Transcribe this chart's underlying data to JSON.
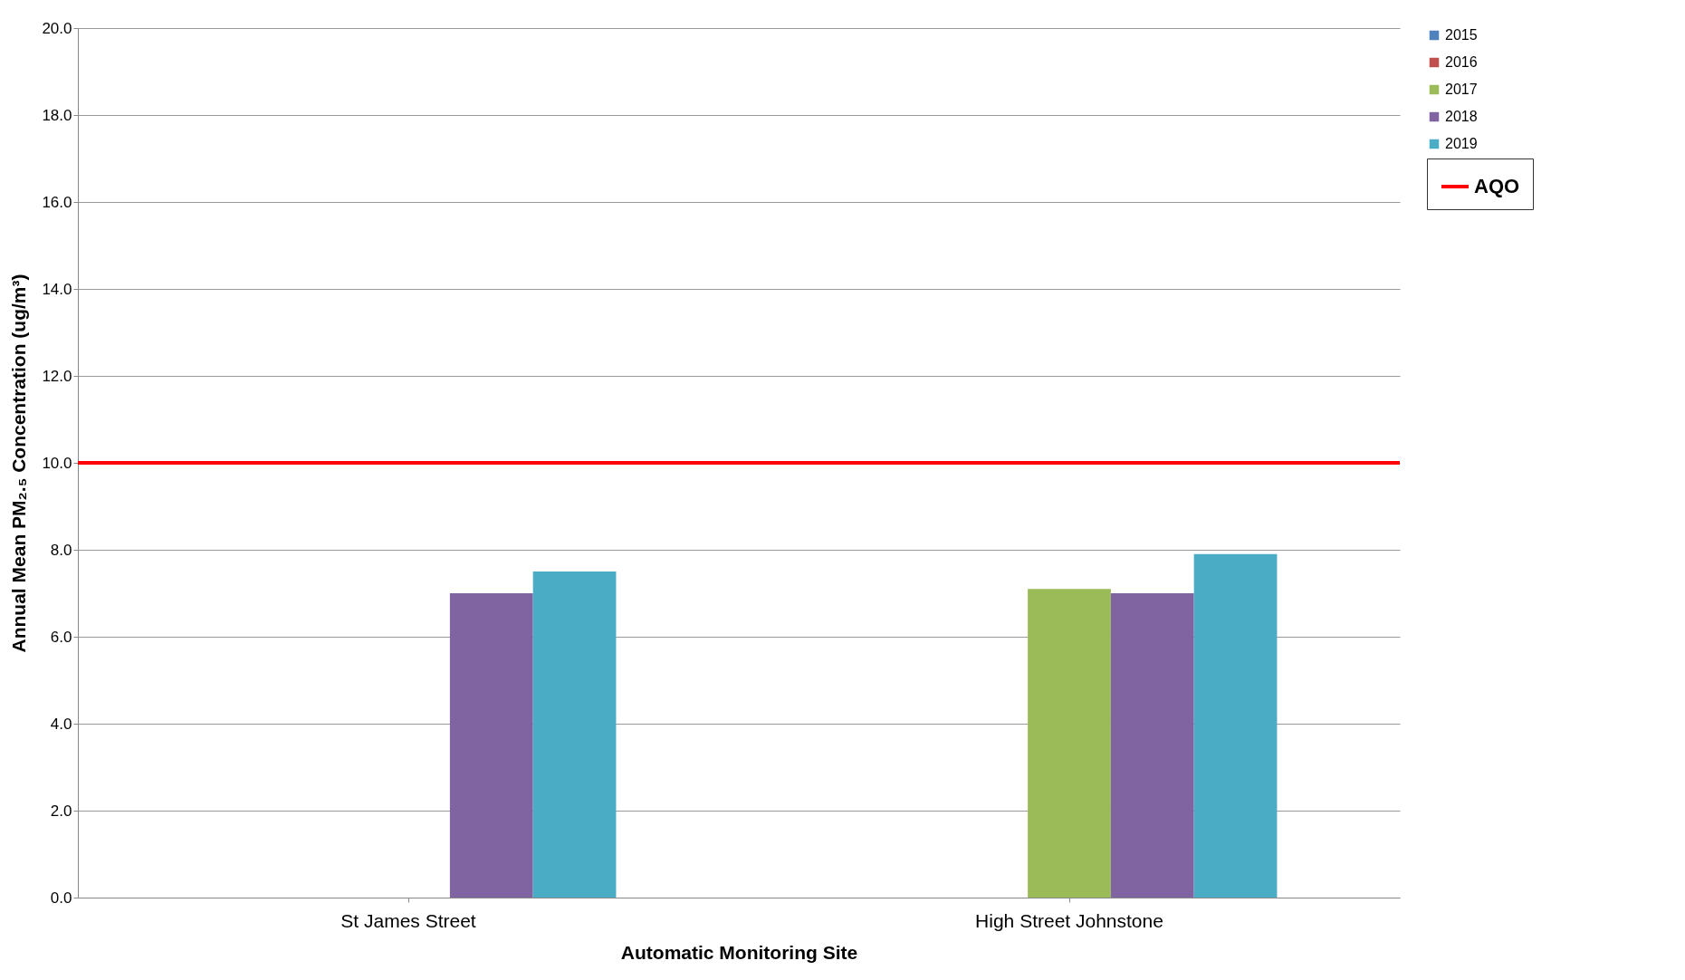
{
  "chart_data": {
    "type": "bar",
    "xlabel": "Automatic Monitoring Site",
    "ylabel": "Annual Mean PM₂.₅ Concentration (ug/m³)",
    "categories": [
      "St James Street",
      "High Street Johnstone"
    ],
    "series": [
      {
        "name": "2015",
        "color": "#4f81bd",
        "values": [
          null,
          null
        ]
      },
      {
        "name": "2016",
        "color": "#c0504d",
        "values": [
          null,
          null
        ]
      },
      {
        "name": "2017",
        "color": "#9bbb59",
        "values": [
          null,
          7.1
        ]
      },
      {
        "name": "2018",
        "color": "#8064a2",
        "values": [
          7.0,
          7.0
        ]
      },
      {
        "name": "2019",
        "color": "#4bacc6",
        "values": [
          7.5,
          7.9
        ]
      }
    ],
    "ylim": [
      0,
      20
    ],
    "yticks": [
      {
        "value": 0,
        "label": "0.0"
      },
      {
        "value": 2,
        "label": "2.0"
      },
      {
        "value": 4,
        "label": "4.0"
      },
      {
        "value": 6,
        "label": "6.0"
      },
      {
        "value": 8,
        "label": "8.0"
      },
      {
        "value": 10,
        "label": "10.0"
      },
      {
        "value": 12,
        "label": "12.0"
      },
      {
        "value": 14,
        "label": "14.0"
      },
      {
        "value": 16,
        "label": "16.0"
      },
      {
        "value": 18,
        "label": "18.0"
      },
      {
        "value": 20,
        "label": "20.0"
      }
    ],
    "grid": "y",
    "legend": "right",
    "ref_lines": [
      {
        "axis": "y",
        "value": 10,
        "label": "AQO",
        "color": "#ff0000"
      }
    ]
  }
}
